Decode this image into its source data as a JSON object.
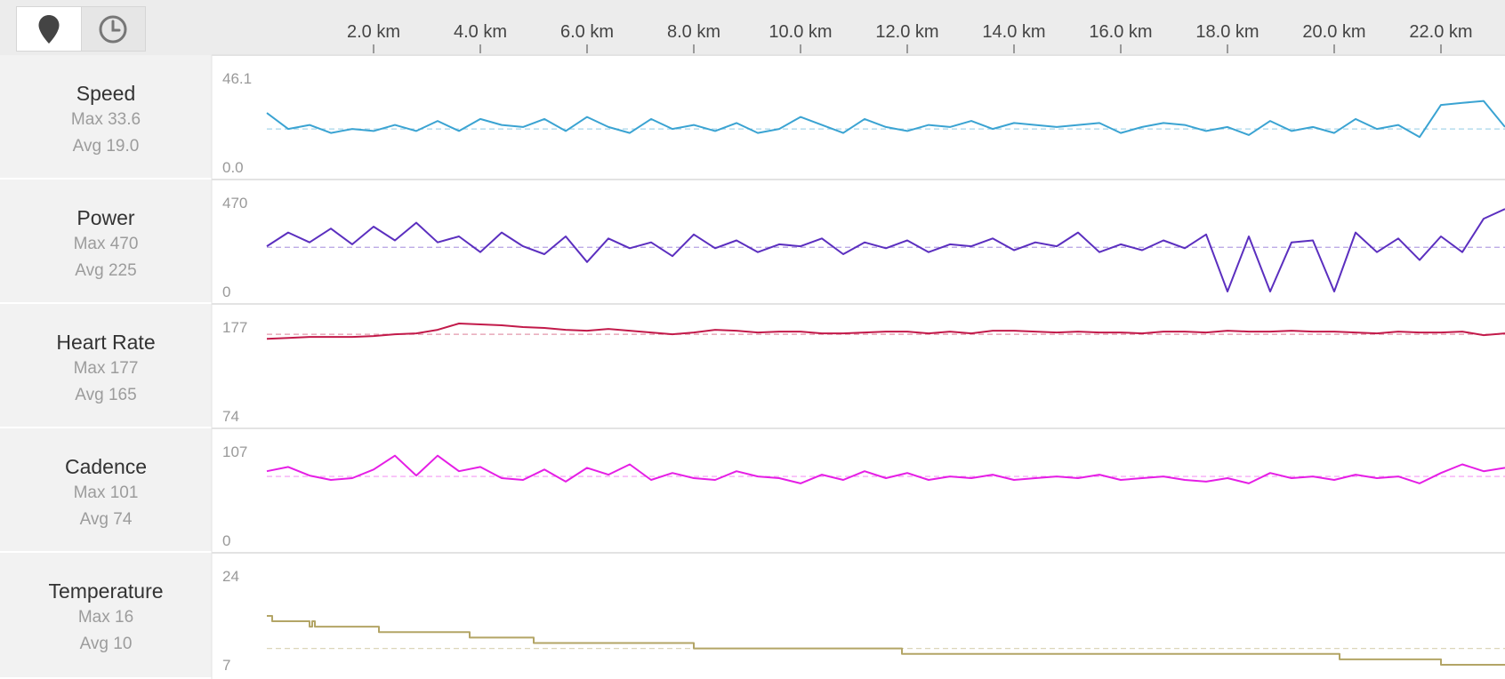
{
  "view_toggle": {
    "distance_icon": "map-pin-icon",
    "time_icon": "clock-icon",
    "active": "distance"
  },
  "x_axis": {
    "unit": "km",
    "ticks": [
      "2.0 km",
      "4.0 km",
      "6.0 km",
      "8.0 km",
      "10.0 km",
      "12.0 km",
      "14.0 km",
      "16.0 km",
      "18.0 km",
      "20.0 km",
      "22.0 km"
    ],
    "tick_values": [
      2,
      4,
      6,
      8,
      10,
      12,
      14,
      16,
      18,
      20,
      22
    ],
    "range": [
      0,
      23.2
    ]
  },
  "panels": [
    {
      "name": "Speed",
      "max_label": "Max 33.6",
      "avg_label": "Avg 19.0",
      "y_top": "46.1",
      "y_bottom": "0.0"
    },
    {
      "name": "Power",
      "max_label": "Max 470",
      "avg_label": "Avg 225",
      "y_top": "470",
      "y_bottom": "0"
    },
    {
      "name": "Heart Rate",
      "max_label": "Max 177",
      "avg_label": "Avg 165",
      "y_top": "177",
      "y_bottom": "74"
    },
    {
      "name": "Cadence",
      "max_label": "Max 101",
      "avg_label": "Avg 74",
      "y_top": "107",
      "y_bottom": "0"
    },
    {
      "name": "Temperature",
      "max_label": "Max 16",
      "avg_label": "Avg 10",
      "y_top": "24",
      "y_bottom": "7"
    }
  ],
  "chart_data": {
    "type": "line",
    "x_unit": "km",
    "x_range": [
      0,
      23.2
    ],
    "series": [
      {
        "name": "Speed",
        "color": "#3aa3d2",
        "ylim": [
          0,
          46.1
        ],
        "avg": 19.0,
        "max": 33.6,
        "x": [
          0,
          0.4,
          0.8,
          1.2,
          1.6,
          2.0,
          2.4,
          2.8,
          3.2,
          3.6,
          4.0,
          4.4,
          4.8,
          5.2,
          5.6,
          6.0,
          6.4,
          6.8,
          7.2,
          7.6,
          8.0,
          8.4,
          8.8,
          9.2,
          9.6,
          10.0,
          10.4,
          10.8,
          11.2,
          11.6,
          12.0,
          12.4,
          12.8,
          13.2,
          13.6,
          14.0,
          14.4,
          14.8,
          15.2,
          15.6,
          16.0,
          16.4,
          16.8,
          17.2,
          17.6,
          18.0,
          18.4,
          18.8,
          19.2,
          19.6,
          20.0,
          20.4,
          20.8,
          21.2,
          21.6,
          22.0,
          22.4,
          22.8,
          23.2
        ],
        "values": [
          27,
          19,
          21,
          17,
          19,
          18,
          21,
          18,
          23,
          18,
          24,
          21,
          20,
          24,
          18,
          25,
          20,
          17,
          24,
          19,
          21,
          18,
          22,
          17,
          19,
          25,
          21,
          17,
          24,
          20,
          18,
          21,
          20,
          23,
          19,
          22,
          21,
          20,
          21,
          22,
          17,
          20,
          22,
          21,
          18,
          20,
          16,
          23,
          18,
          20,
          17,
          24,
          19,
          21,
          15,
          31,
          32,
          33,
          20
        ]
      },
      {
        "name": "Power",
        "color": "#5b2fbf",
        "ylim": [
          0,
          470
        ],
        "avg": 225,
        "max": 470,
        "x": [
          0,
          0.4,
          0.8,
          1.2,
          1.6,
          2.0,
          2.4,
          2.8,
          3.2,
          3.6,
          4.0,
          4.4,
          4.8,
          5.2,
          5.6,
          6.0,
          6.4,
          6.8,
          7.2,
          7.6,
          8.0,
          8.4,
          8.8,
          9.2,
          9.6,
          10.0,
          10.4,
          10.8,
          11.2,
          11.6,
          12.0,
          12.4,
          12.8,
          13.2,
          13.6,
          14.0,
          14.4,
          14.8,
          15.2,
          15.6,
          16.0,
          16.4,
          16.8,
          17.2,
          17.6,
          18.0,
          18.4,
          18.8,
          19.2,
          19.6,
          20.0,
          20.4,
          20.8,
          21.2,
          21.6,
          22.0,
          22.4,
          22.8,
          23.2
        ],
        "values": [
          230,
          300,
          250,
          320,
          240,
          330,
          260,
          350,
          250,
          280,
          200,
          300,
          230,
          190,
          280,
          150,
          270,
          220,
          250,
          180,
          290,
          220,
          260,
          200,
          240,
          230,
          270,
          190,
          250,
          220,
          260,
          200,
          240,
          230,
          270,
          210,
          250,
          230,
          300,
          200,
          240,
          210,
          260,
          220,
          290,
          0,
          280,
          0,
          250,
          260,
          0,
          300,
          200,
          270,
          160,
          280,
          200,
          370,
          420
        ]
      },
      {
        "name": "Heart Rate",
        "color": "#c21a4a",
        "ylim": [
          74,
          177
        ],
        "avg": 165,
        "max": 177,
        "x": [
          0,
          0.4,
          0.8,
          1.2,
          1.6,
          2.0,
          2.4,
          2.8,
          3.2,
          3.6,
          4.0,
          4.4,
          4.8,
          5.2,
          5.6,
          6.0,
          6.4,
          6.8,
          7.2,
          7.6,
          8.0,
          8.4,
          8.8,
          9.2,
          9.6,
          10.0,
          10.4,
          10.8,
          11.2,
          11.6,
          12.0,
          12.4,
          12.8,
          13.2,
          13.6,
          14.0,
          14.4,
          14.8,
          15.2,
          15.6,
          16.0,
          16.4,
          16.8,
          17.2,
          17.6,
          18.0,
          18.4,
          18.8,
          19.2,
          19.6,
          20.0,
          20.4,
          20.8,
          21.2,
          21.6,
          22.0,
          22.4,
          22.8,
          23.2
        ],
        "values": [
          160,
          161,
          162,
          162,
          162,
          163,
          165,
          166,
          170,
          177,
          176,
          175,
          173,
          172,
          170,
          169,
          171,
          169,
          167,
          165,
          167,
          170,
          169,
          167,
          168,
          168,
          166,
          166,
          167,
          168,
          168,
          166,
          168,
          166,
          169,
          169,
          168,
          167,
          168,
          167,
          167,
          166,
          168,
          168,
          167,
          169,
          168,
          168,
          169,
          168,
          168,
          167,
          166,
          168,
          167,
          167,
          168,
          164,
          166
        ]
      },
      {
        "name": "Cadence",
        "color": "#e51ee5",
        "ylim": [
          0,
          107
        ],
        "avg": 74,
        "max": 101,
        "x": [
          0,
          0.4,
          0.8,
          1.2,
          1.6,
          2.0,
          2.4,
          2.8,
          3.2,
          3.6,
          4.0,
          4.4,
          4.8,
          5.2,
          5.6,
          6.0,
          6.4,
          6.8,
          7.2,
          7.6,
          8.0,
          8.4,
          8.8,
          9.2,
          9.6,
          10.0,
          10.4,
          10.8,
          11.2,
          11.6,
          12.0,
          12.4,
          12.8,
          13.2,
          13.6,
          14.0,
          14.4,
          14.8,
          15.2,
          15.6,
          16.0,
          16.4,
          16.8,
          17.2,
          17.6,
          18.0,
          18.4,
          18.8,
          19.2,
          19.6,
          20.0,
          20.4,
          20.8,
          21.2,
          21.6,
          22.0,
          22.4,
          22.8,
          23.2
        ],
        "values": [
          80,
          85,
          75,
          70,
          72,
          82,
          98,
          75,
          98,
          80,
          85,
          72,
          70,
          82,
          68,
          84,
          76,
          88,
          70,
          78,
          72,
          70,
          80,
          74,
          72,
          66,
          76,
          70,
          80,
          72,
          78,
          70,
          74,
          72,
          76,
          70,
          72,
          74,
          72,
          76,
          70,
          72,
          74,
          70,
          68,
          72,
          66,
          78,
          72,
          74,
          70,
          76,
          72,
          74,
          66,
          78,
          88,
          80,
          84
        ]
      },
      {
        "name": "Temperature",
        "color": "#b3a566",
        "ylim": [
          7,
          24
        ],
        "avg": 10,
        "max": 16,
        "x": [
          0,
          0.1,
          0.8,
          0.85,
          0.9,
          2.1,
          3.8,
          5.0,
          8.0,
          11.9,
          20.1,
          22.0,
          23.2
        ],
        "values": [
          16,
          15,
          14,
          15,
          14,
          13,
          12,
          11,
          10,
          9,
          8,
          7,
          7
        ]
      }
    ]
  }
}
